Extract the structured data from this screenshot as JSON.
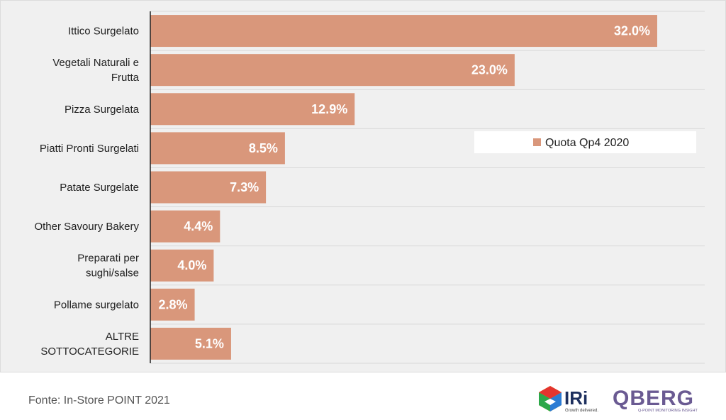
{
  "chart_data": {
    "type": "bar",
    "orientation": "horizontal",
    "categories": [
      [
        "Ittico Surgelato"
      ],
      [
        "Vegetali Naturali e",
        "Frutta"
      ],
      [
        "Pizza Surgelata"
      ],
      [
        "Piatti Pronti Surgelati"
      ],
      [
        "Patate Surgelate"
      ],
      [
        "Other Savoury Bakery"
      ],
      [
        "Preparati per",
        "sughi/salse"
      ],
      [
        "Pollame surgelato"
      ],
      [
        "ALTRE",
        "SOTTOCATEGORIE"
      ]
    ],
    "series": [
      {
        "name": "Quota Qp4 2020",
        "values": [
          32.0,
          23.0,
          12.9,
          8.5,
          7.3,
          4.4,
          4.0,
          2.8,
          5.1
        ],
        "labels": [
          "32.0%",
          "23.0%",
          "12.9%",
          "8.5%",
          "7.3%",
          "4.4%",
          "4.0%",
          "2.8%",
          "5.1%"
        ]
      }
    ],
    "xlim": [
      0,
      35
    ],
    "grid": "horizontal",
    "legend_position": "right",
    "colors": {
      "bar": "#d9977b",
      "panel": "#f0f0f0",
      "grid": "#d8d8d8"
    }
  },
  "source": "Fonte: In-Store POINT 2021",
  "logos": {
    "iri": {
      "name": "IRi",
      "tagline": "Growth delivered."
    },
    "qberg": {
      "name": "QBERG",
      "tagline": "Q-POINT MONITORING INSIGHT"
    }
  }
}
